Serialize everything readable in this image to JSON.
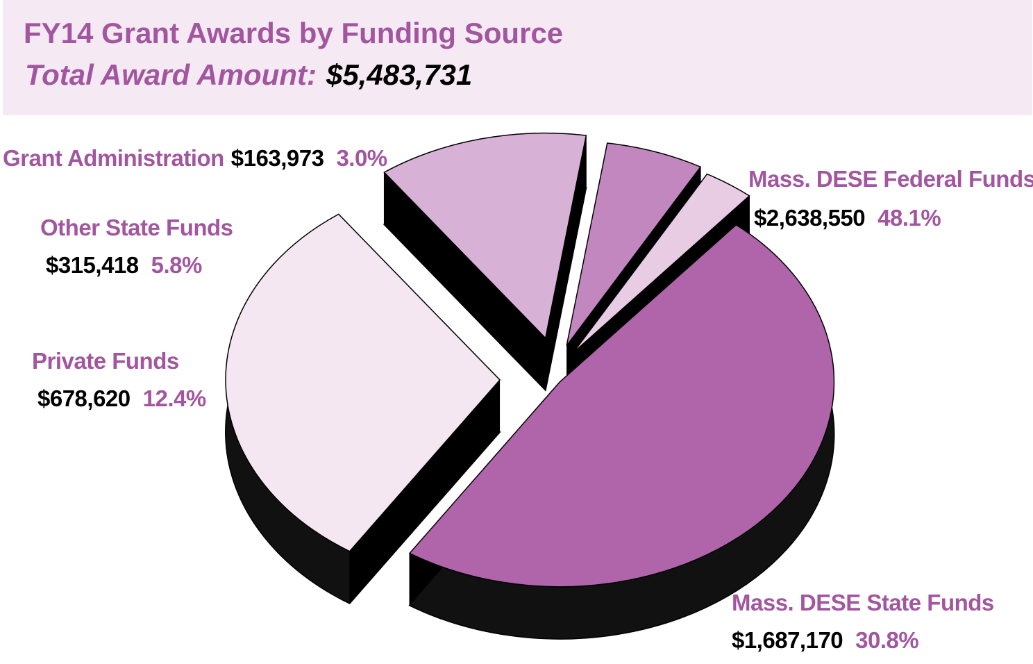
{
  "header": {
    "title": "FY14 Grant Awards by Funding Source",
    "total_label": "Total Award Amount:",
    "total_value": "$5,483,731"
  },
  "chart_data": {
    "type": "pie",
    "title": "FY14 Grant Awards by Funding Source",
    "total": "$5,483,731",
    "slices": [
      {
        "name": "Mass. DESE Federal Funds",
        "amount": "$2,638,550",
        "value": 2638550,
        "percent": "48.1%",
        "color": "#b064a9"
      },
      {
        "name": "Mass. DESE State Funds",
        "amount": "$1,687,170",
        "value": 1687170,
        "percent": "30.8%",
        "color": "#f4e7f1"
      },
      {
        "name": "Private Funds",
        "amount": "$678,620",
        "value": 678620,
        "percent": "12.4%",
        "color": "#d8b2d6"
      },
      {
        "name": "Other State Funds",
        "amount": "$315,418",
        "value": 315418,
        "percent": "5.8%",
        "color": "#c387bf"
      },
      {
        "name": "Grant Administration",
        "amount": "$163,973",
        "value": 163973,
        "percent": "3.0%",
        "color": "#e8cce4"
      }
    ]
  },
  "colors": {
    "accent": "#a2569f",
    "banner": "#f5eaf3",
    "side": "#000000"
  }
}
